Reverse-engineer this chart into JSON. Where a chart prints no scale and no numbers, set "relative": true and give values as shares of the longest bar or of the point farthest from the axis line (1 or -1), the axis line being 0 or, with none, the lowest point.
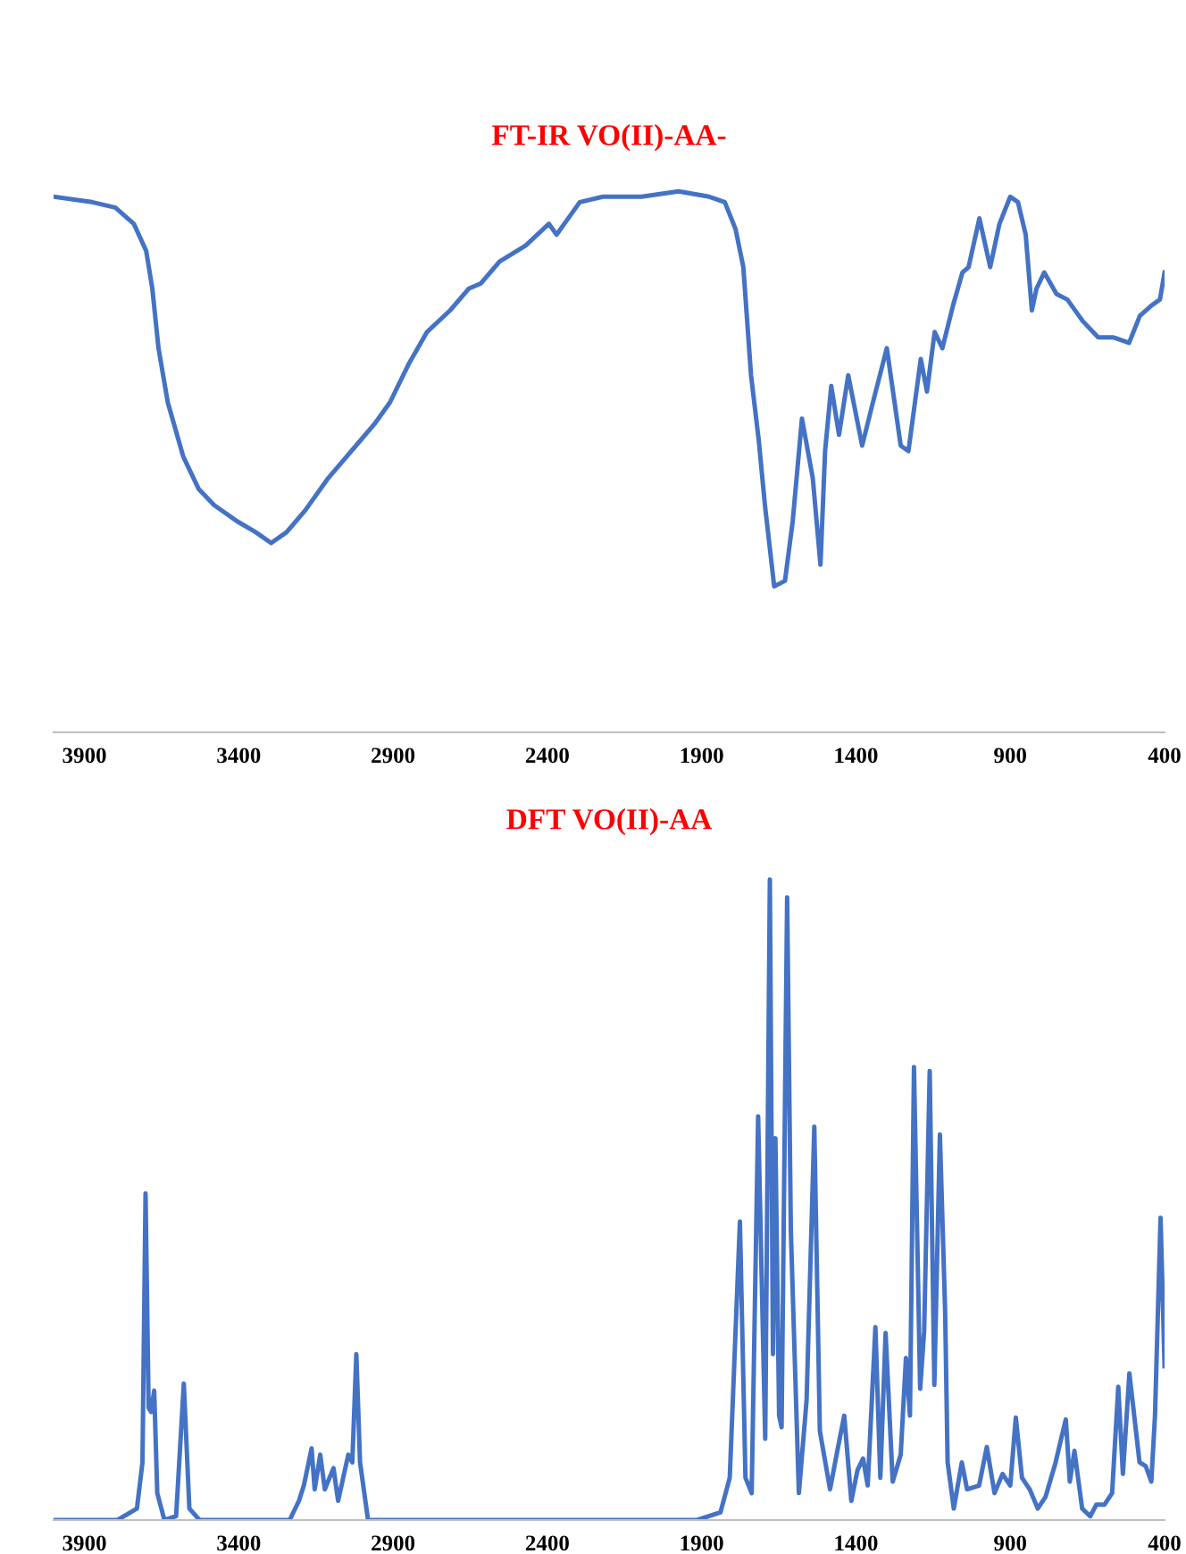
{
  "chart_data": [
    {
      "type": "line",
      "title": "FT-IR VO(II)-AA-",
      "relative": true,
      "tick_labels": "x",
      "grid": false,
      "marker": "none",
      "line_style": "solid",
      "xlim": [
        4000,
        400
      ],
      "xticks": [
        3900,
        3400,
        2900,
        2400,
        1900,
        1400,
        900,
        400
      ],
      "series": [
        {
          "color": "#4472c4",
          "x": [
            4000,
            3875,
            3800,
            3740,
            3700,
            3680,
            3660,
            3630,
            3580,
            3530,
            3480,
            3405,
            3345,
            3295,
            3245,
            3185,
            3110,
            3035,
            2960,
            2910,
            2850,
            2790,
            2715,
            2655,
            2615,
            2555,
            2470,
            2395,
            2370,
            2345,
            2295,
            2220,
            2095,
            1975,
            1875,
            1825,
            1790,
            1765,
            1740,
            1715,
            1695,
            1665,
            1630,
            1605,
            1575,
            1540,
            1515,
            1500,
            1480,
            1455,
            1425,
            1380,
            1345,
            1300,
            1255,
            1230,
            1190,
            1170,
            1145,
            1120,
            1085,
            1055,
            1035,
            1000,
            965,
            935,
            900,
            875,
            850,
            830,
            815,
            790,
            750,
            715,
            665,
            615,
            565,
            515,
            480,
            440,
            415,
            400
          ],
          "values": [
            0.99,
            0.98,
            0.97,
            0.94,
            0.89,
            0.82,
            0.71,
            0.61,
            0.51,
            0.45,
            0.42,
            0.39,
            0.37,
            0.35,
            0.37,
            0.41,
            0.47,
            0.52,
            0.57,
            0.61,
            0.68,
            0.74,
            0.78,
            0.82,
            0.83,
            0.87,
            0.9,
            0.94,
            0.92,
            0.94,
            0.98,
            0.99,
            0.99,
            1.0,
            0.99,
            0.98,
            0.93,
            0.86,
            0.66,
            0.54,
            0.42,
            0.27,
            0.28,
            0.39,
            0.58,
            0.47,
            0.31,
            0.52,
            0.64,
            0.55,
            0.66,
            0.53,
            0.61,
            0.71,
            0.53,
            0.52,
            0.69,
            0.63,
            0.74,
            0.71,
            0.79,
            0.85,
            0.86,
            0.95,
            0.86,
            0.94,
            0.99,
            0.98,
            0.92,
            0.78,
            0.82,
            0.85,
            0.81,
            0.8,
            0.76,
            0.73,
            0.73,
            0.72,
            0.77,
            0.79,
            0.8,
            0.85
          ]
        }
      ]
    },
    {
      "type": "line",
      "title": "DFT VO(II)-AA",
      "relative": true,
      "tick_labels": "x",
      "grid": false,
      "marker": "none",
      "line_style": "solid",
      "xlim": [
        4000,
        400
      ],
      "xticks": [
        3900,
        3400,
        2900,
        2400,
        1900,
        1400,
        900,
        400
      ],
      "series": [
        {
          "color": "#4472c4",
          "x": [
            4000,
            3793,
            3730,
            3712,
            3702,
            3692,
            3684,
            3674,
            3664,
            3641,
            3603,
            3578,
            3560,
            3527,
            3235,
            3205,
            3189,
            3164,
            3154,
            3136,
            3121,
            3093,
            3078,
            3045,
            3032,
            3019,
            3007,
            2981,
            1915,
            1839,
            1809,
            1776,
            1758,
            1738,
            1717,
            1694,
            1679,
            1669,
            1661,
            1649,
            1641,
            1623,
            1611,
            1585,
            1560,
            1535,
            1517,
            1484,
            1458,
            1438,
            1415,
            1395,
            1377,
            1362,
            1337,
            1321,
            1304,
            1281,
            1255,
            1238,
            1225,
            1212,
            1192,
            1179,
            1161,
            1146,
            1128,
            1111,
            1103,
            1083,
            1057,
            1040,
            1001,
            976,
            951,
            925,
            900,
            882,
            862,
            837,
            811,
            786,
            753,
            735,
            720,
            707,
            692,
            667,
            641,
            621,
            595,
            570,
            550,
            535,
            514,
            481,
            461,
            443,
            431,
            413,
            400
          ],
          "values": [
            0,
            0,
            0.018,
            0.09,
            0.51,
            0.175,
            0.169,
            0.202,
            0.042,
            0,
            0.006,
            0.213,
            0.018,
            0,
            0,
            0.03,
            0.054,
            0.112,
            0.048,
            0.102,
            0.048,
            0.081,
            0.03,
            0.102,
            0.09,
            0.259,
            0.09,
            0,
            0,
            0.012,
            0.066,
            0.466,
            0.066,
            0.042,
            0.63,
            0.127,
            1.0,
            0.259,
            0.596,
            0.163,
            0.145,
            0.972,
            0.452,
            0.042,
            0.187,
            0.614,
            0.139,
            0.048,
            0.114,
            0.163,
            0.03,
            0.078,
            0.096,
            0.054,
            0.301,
            0.066,
            0.292,
            0.06,
            0.102,
            0.253,
            0.163,
            0.707,
            0.205,
            0.295,
            0.701,
            0.211,
            0.602,
            0.325,
            0.09,
            0.018,
            0.09,
            0.048,
            0.054,
            0.114,
            0.042,
            0.072,
            0.054,
            0.16,
            0.066,
            0.048,
            0.018,
            0.036,
            0.09,
            0.127,
            0.157,
            0.06,
            0.108,
            0.018,
            0.006,
            0.024,
            0.024,
            0.042,
            0.208,
            0.072,
            0.229,
            0.09,
            0.084,
            0.06,
            0.163,
            0.472,
            0.24
          ]
        }
      ]
    }
  ]
}
